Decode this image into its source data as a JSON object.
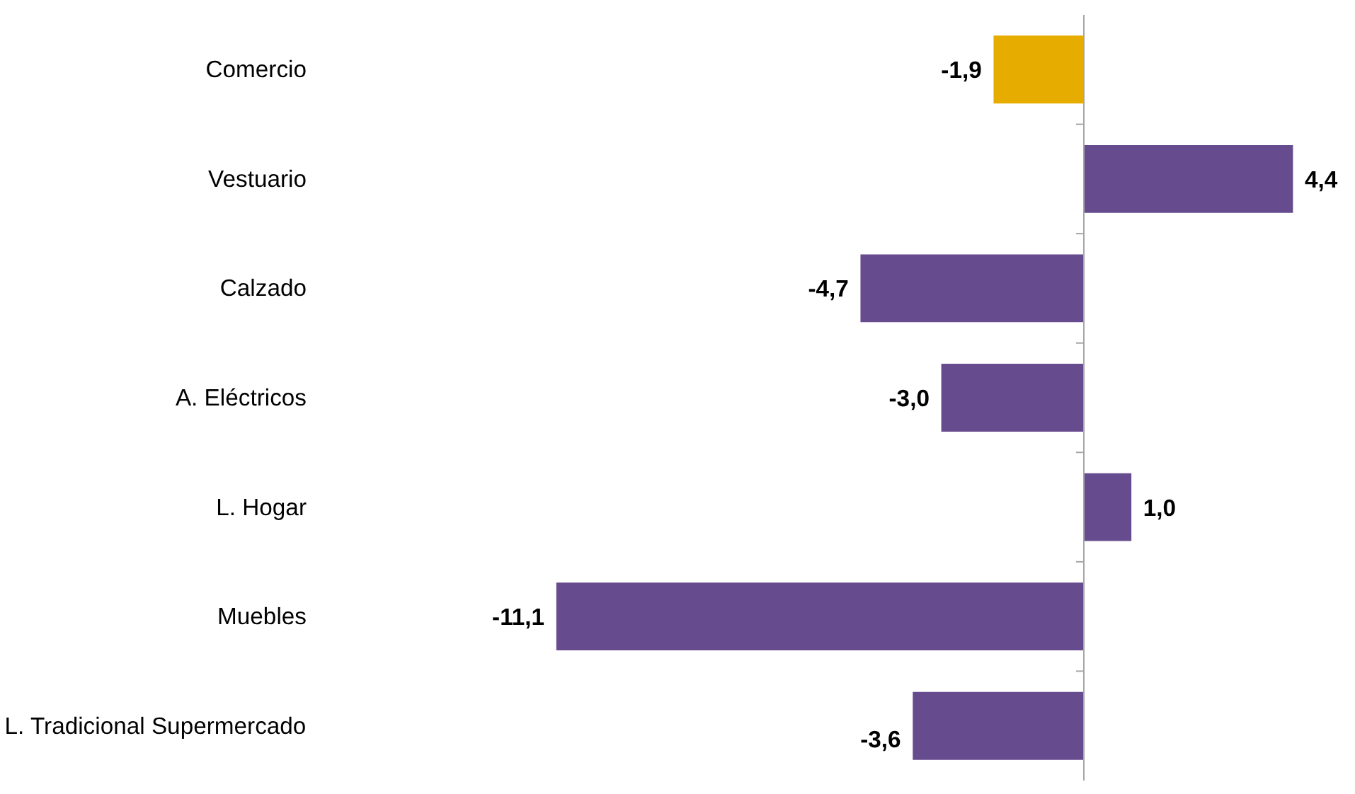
{
  "chart_data": {
    "type": "bar",
    "orientation": "horizontal",
    "categories": [
      "Comercio",
      "Vestuario",
      "Calzado",
      "A. Eléctricos",
      "L. Hogar",
      "Muebles",
      "L. Tradicional Supermercado"
    ],
    "values": [
      -1.9,
      4.4,
      -4.7,
      -3.0,
      1.0,
      -11.1,
      -3.6
    ],
    "value_labels": [
      "-1,9",
      "4,4",
      "-4,7",
      "-3,0",
      "1,0",
      "-11,1",
      "-3,6"
    ],
    "colors": [
      "#e6ac00",
      "#664c8e",
      "#664c8e",
      "#664c8e",
      "#664c8e",
      "#664c8e",
      "#664c8e"
    ],
    "grid": false
  }
}
